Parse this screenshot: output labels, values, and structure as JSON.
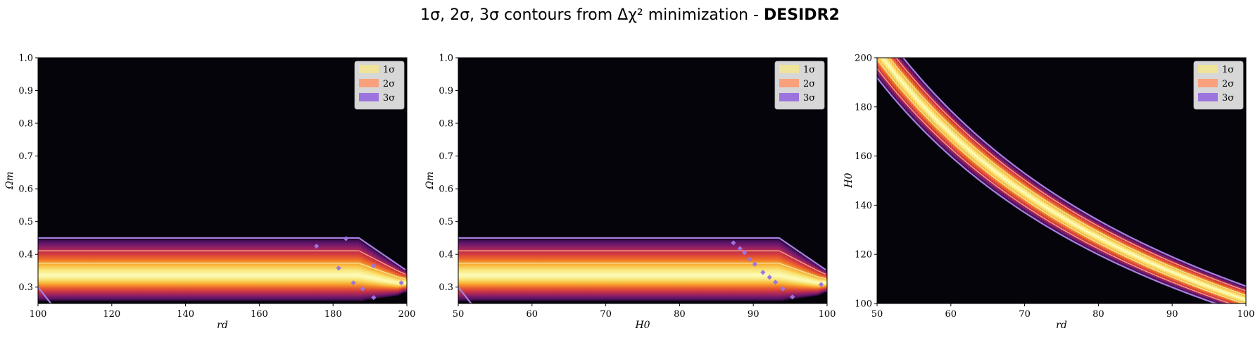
{
  "title_main": "1σ, 2σ, 3σ contours from Δχ² minimization - ",
  "title_bold": "DESIDR2",
  "colors": {
    "background": "#05040a",
    "one_sigma": "#efe49a",
    "two_sigma": "#f9a07c",
    "three_sigma": "#9c74de",
    "contour_line": "#a77fe0",
    "legend_bg": "#d7d7d7"
  },
  "legend": [
    "1σ",
    "2σ",
    "3σ"
  ],
  "chart_data": [
    {
      "type": "heatmap",
      "xlabel": "rd",
      "ylabel": "Ωm",
      "xlim": [
        100,
        200
      ],
      "ylim": [
        0.25,
        1.0
      ],
      "xticks": [
        "100",
        "120",
        "140",
        "160",
        "180",
        "200"
      ],
      "yticks": [
        "0.3",
        "0.4",
        "0.5",
        "0.6",
        "0.7",
        "0.8",
        "0.9",
        "1.0"
      ],
      "legend_position": "top-right",
      "band": {
        "shape": "horizontal",
        "center": 0.335,
        "sigma3_lower": 0.255,
        "sigma3_upper": 0.45,
        "bend_start_x": 187,
        "upper_at_xmax": 0.35
      },
      "scatter_points": [
        [
          175.5,
          0.425
        ],
        [
          183.5,
          0.448
        ],
        [
          181.5,
          0.358
        ],
        [
          191,
          0.365
        ],
        [
          185.5,
          0.313
        ],
        [
          188,
          0.295
        ],
        [
          191,
          0.268
        ],
        [
          198.5,
          0.313
        ]
      ]
    },
    {
      "type": "heatmap",
      "xlabel": "H0",
      "ylabel": "Ωm",
      "xlim": [
        50,
        100
      ],
      "ylim": [
        0.25,
        1.0
      ],
      "xticks": [
        "50",
        "60",
        "70",
        "80",
        "90",
        "100"
      ],
      "yticks": [
        "0.3",
        "0.4",
        "0.5",
        "0.6",
        "0.7",
        "0.8",
        "0.9",
        "1.0"
      ],
      "legend_position": "top-right",
      "band": {
        "shape": "horizontal",
        "center": 0.335,
        "sigma3_lower": 0.255,
        "sigma3_upper": 0.45,
        "bend_start_x": 93.5,
        "upper_at_xmax": 0.35
      },
      "scatter_points": [
        [
          87.3,
          0.435
        ],
        [
          88.2,
          0.418
        ],
        [
          88.8,
          0.405
        ],
        [
          89.5,
          0.385
        ],
        [
          90.2,
          0.37
        ],
        [
          91.3,
          0.345
        ],
        [
          92.2,
          0.33
        ],
        [
          93,
          0.315
        ],
        [
          94,
          0.295
        ],
        [
          95.3,
          0.27
        ],
        [
          99.2,
          0.308
        ]
      ]
    },
    {
      "type": "heatmap",
      "xlabel": "rd",
      "ylabel": "H0",
      "xlim": [
        50,
        100
      ],
      "ylim": [
        100,
        200
      ],
      "xticks": [
        "50",
        "60",
        "70",
        "80",
        "90",
        "100"
      ],
      "yticks": [
        "100",
        "120",
        "140",
        "160",
        "180",
        "200"
      ],
      "legend_position": "top-right",
      "band": {
        "shape": "hyperbolic",
        "product_center": 10150,
        "relative_width_3sigma": 0.055
      }
    }
  ]
}
